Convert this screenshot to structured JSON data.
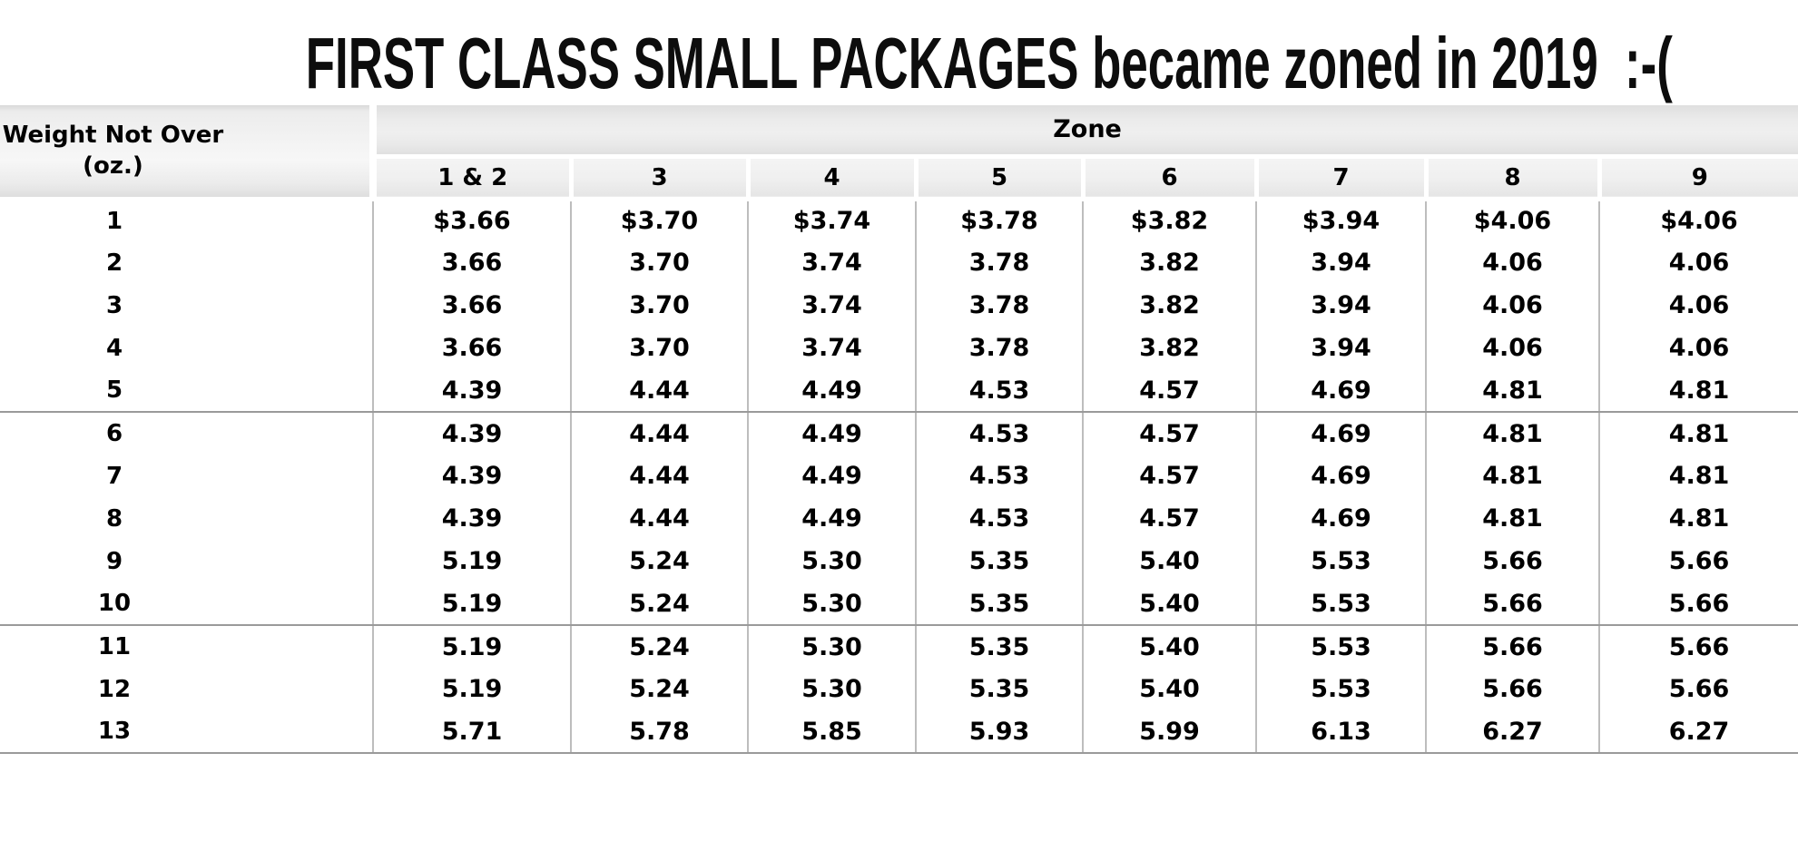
{
  "chart_data": {
    "type": "table",
    "title": "FIRST CLASS SMALL PACKAGES became zoned in 2019  :-(",
    "row_header_line1": "Weight Not Over",
    "row_header_line2": "(oz.)",
    "column_group_label": "Zone",
    "columns": [
      "1 & 2",
      "3",
      "4",
      "5",
      "6",
      "7",
      "8",
      "9"
    ],
    "rows": [
      {
        "weight": "1",
        "rates": [
          "$3.66",
          "$3.70",
          "$3.74",
          "$3.78",
          "$3.82",
          "$3.94",
          "$4.06",
          "$4.06"
        ],
        "group_end": false
      },
      {
        "weight": "2",
        "rates": [
          "3.66",
          "3.70",
          "3.74",
          "3.78",
          "3.82",
          "3.94",
          "4.06",
          "4.06"
        ],
        "group_end": false
      },
      {
        "weight": "3",
        "rates": [
          "3.66",
          "3.70",
          "3.74",
          "3.78",
          "3.82",
          "3.94",
          "4.06",
          "4.06"
        ],
        "group_end": false
      },
      {
        "weight": "4",
        "rates": [
          "3.66",
          "3.70",
          "3.74",
          "3.78",
          "3.82",
          "3.94",
          "4.06",
          "4.06"
        ],
        "group_end": false
      },
      {
        "weight": "5",
        "rates": [
          "4.39",
          "4.44",
          "4.49",
          "4.53",
          "4.57",
          "4.69",
          "4.81",
          "4.81"
        ],
        "group_end": true
      },
      {
        "weight": "6",
        "rates": [
          "4.39",
          "4.44",
          "4.49",
          "4.53",
          "4.57",
          "4.69",
          "4.81",
          "4.81"
        ],
        "group_end": false
      },
      {
        "weight": "7",
        "rates": [
          "4.39",
          "4.44",
          "4.49",
          "4.53",
          "4.57",
          "4.69",
          "4.81",
          "4.81"
        ],
        "group_end": false
      },
      {
        "weight": "8",
        "rates": [
          "4.39",
          "4.44",
          "4.49",
          "4.53",
          "4.57",
          "4.69",
          "4.81",
          "4.81"
        ],
        "group_end": false
      },
      {
        "weight": "9",
        "rates": [
          "5.19",
          "5.24",
          "5.30",
          "5.35",
          "5.40",
          "5.53",
          "5.66",
          "5.66"
        ],
        "group_end": false
      },
      {
        "weight": "10",
        "rates": [
          "5.19",
          "5.24",
          "5.30",
          "5.35",
          "5.40",
          "5.53",
          "5.66",
          "5.66"
        ],
        "group_end": true
      },
      {
        "weight": "11",
        "rates": [
          "5.19",
          "5.24",
          "5.30",
          "5.35",
          "5.40",
          "5.53",
          "5.66",
          "5.66"
        ],
        "group_end": false
      },
      {
        "weight": "12",
        "rates": [
          "5.19",
          "5.24",
          "5.30",
          "5.35",
          "5.40",
          "5.53",
          "5.66",
          "5.66"
        ],
        "group_end": false
      },
      {
        "weight": "13",
        "rates": [
          "5.71",
          "5.78",
          "5.85",
          "5.93",
          "5.99",
          "6.13",
          "6.27",
          "6.27"
        ],
        "group_end": true
      }
    ],
    "layout_hints": {
      "grid": "vertical separators between zone columns, horizontal rules after weights 5, 10 and 13",
      "legend": "none",
      "header_style": "gray gradient band with Zone group header over zone numbers"
    }
  },
  "colors": {
    "background": "#ffffff",
    "text": "#000000",
    "header_gray_top": "#dfdfdf",
    "header_gray_light": "#f4f4f4",
    "column_grid_gray": "#bdbdbd",
    "group_divider_gray": "#9a9a9a"
  }
}
